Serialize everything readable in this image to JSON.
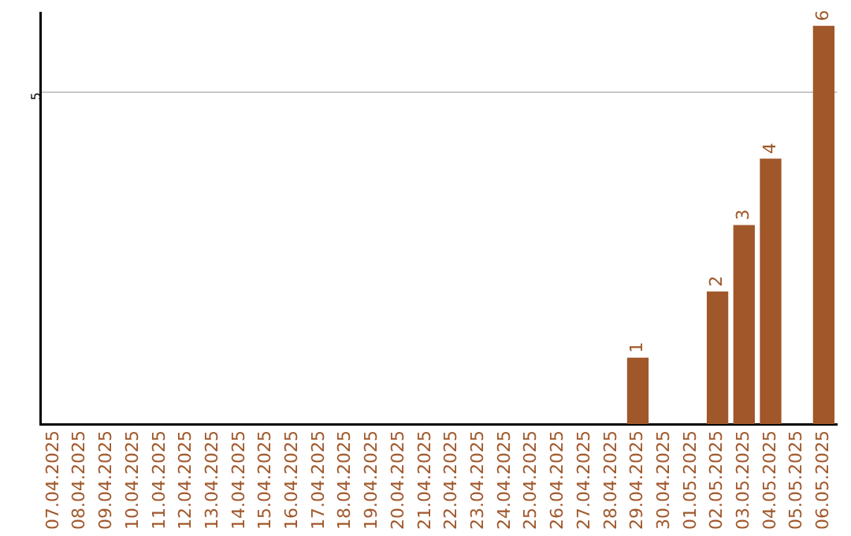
{
  "chart_data": {
    "type": "bar",
    "categories": [
      "07.04.2025",
      "08.04.2025",
      "09.04.2025",
      "10.04.2025",
      "11.04.2025",
      "12.04.2025",
      "13.04.2025",
      "14.04.2025",
      "15.04.2025",
      "16.04.2025",
      "17.04.2025",
      "18.04.2025",
      "19.04.2025",
      "20.04.2025",
      "21.04.2025",
      "22.04.2025",
      "23.04.2025",
      "24.04.2025",
      "25.04.2025",
      "26.04.2025",
      "27.04.2025",
      "28.04.2025",
      "29.04.2025",
      "30.04.2025",
      "01.05.2025",
      "02.05.2025",
      "03.05.2025",
      "04.05.2025",
      "05.05.2025",
      "06.05.2025"
    ],
    "values": [
      null,
      null,
      null,
      null,
      null,
      null,
      null,
      null,
      null,
      null,
      null,
      null,
      null,
      null,
      null,
      null,
      null,
      null,
      null,
      null,
      null,
      null,
      1,
      null,
      null,
      2,
      3,
      4,
      null,
      6
    ],
    "data_labels": true,
    "color": "#a0572a",
    "ylim": [
      0,
      6.2
    ],
    "yticks": [
      5
    ],
    "grid": "y",
    "legend": false
  }
}
